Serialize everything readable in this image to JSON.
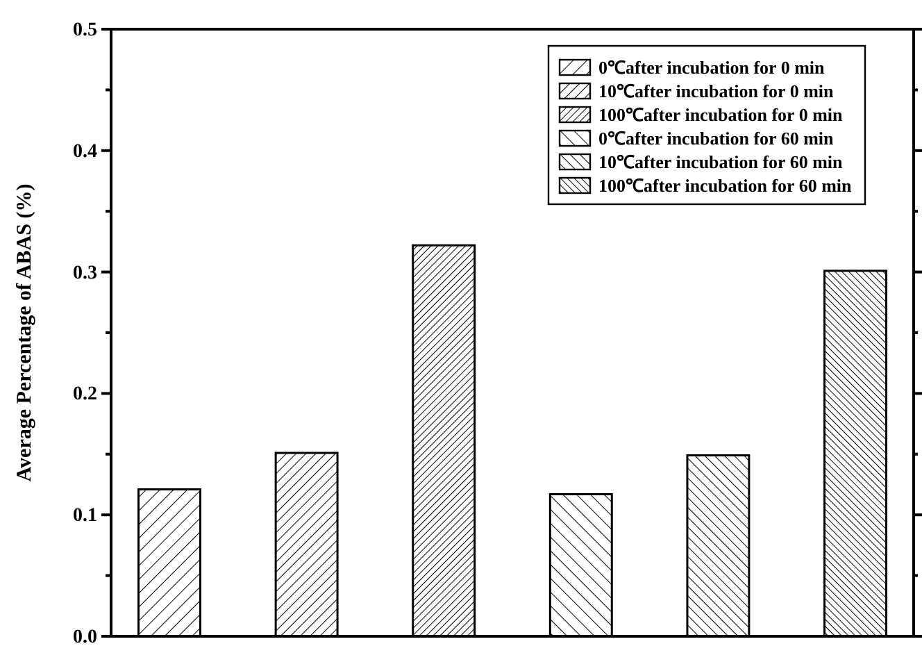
{
  "chart_data": {
    "type": "bar",
    "stacked": true,
    "ylabel": "Average Percentage of ABAS (%)",
    "categories": [
      null,
      null,
      null,
      null,
      null,
      null
    ],
    "ylim": [
      0,
      0.5
    ],
    "yticks": [
      {
        "value": 0,
        "label": "0.0"
      },
      {
        "value": 0.05,
        "label": null
      },
      0.1,
      {
        "value": 0.15,
        "label": null
      },
      0.2,
      {
        "value": 0.25,
        "label": null
      },
      0.3,
      {
        "value": 0.35,
        "label": null
      },
      0.4,
      {
        "value": 0.45,
        "label": null
      },
      0.5
    ],
    "tick_labels": "y",
    "legend": "top right",
    "grid": false,
    "series": [
      {
        "name": "0℃after incubation for 0 min",
        "color": "#000000",
        "values": [
          0.121,
          null,
          null,
          null,
          null,
          null
        ]
      },
      {
        "name": "10℃after incubation for 0 min",
        "color": "#000000",
        "values": [
          null,
          0.151,
          null,
          null,
          null,
          null
        ]
      },
      {
        "name": "100℃after incubation for 0 min",
        "color": "#000000",
        "values": [
          null,
          null,
          0.322,
          null,
          null,
          null
        ]
      },
      {
        "name": "0℃after incubation for 60 min",
        "color": "#000000",
        "values": [
          null,
          null,
          null,
          0.117,
          null,
          null
        ]
      },
      {
        "name": "10℃after incubation for 60 min",
        "color": "#000000",
        "values": [
          null,
          null,
          null,
          null,
          0.149,
          null
        ]
      },
      {
        "name": "100℃after incubation for 60 min",
        "color": "#000000",
        "values": [
          null,
          null,
          null,
          null,
          null,
          0.301
        ]
      }
    ]
  }
}
